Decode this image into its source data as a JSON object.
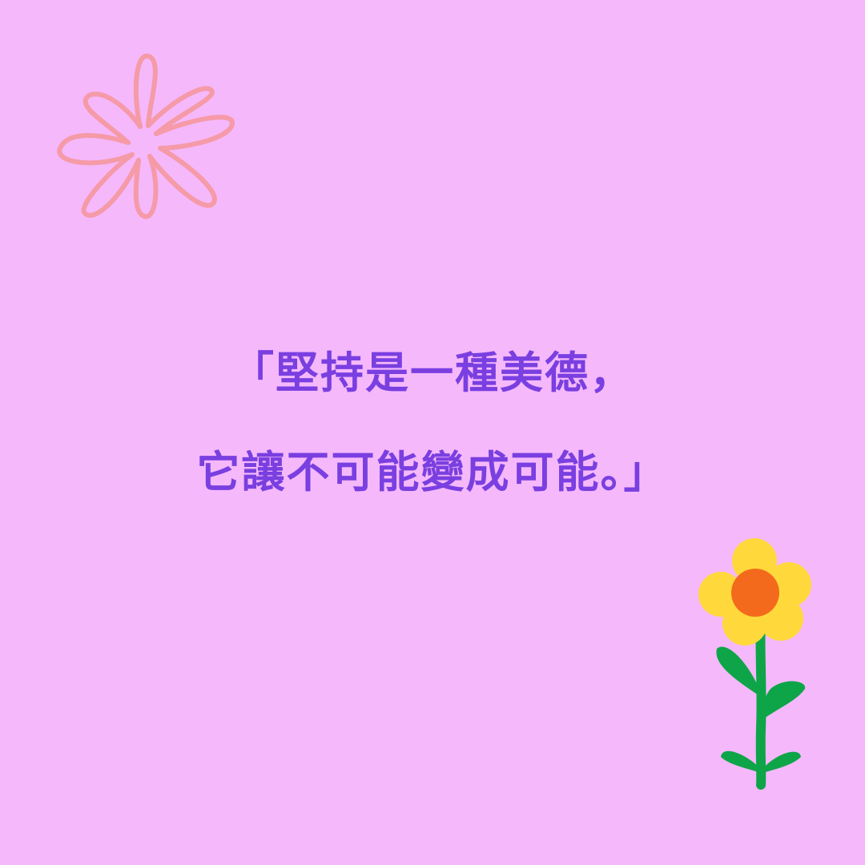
{
  "quote": {
    "line1": "「堅持是一種美德，",
    "line2": "它讓不可能變成可能。」"
  },
  "colors": {
    "background": "#f5b8fb",
    "text": "#7a3fe0",
    "outline_flower": "#f59aa7",
    "petal": "#ffd93b",
    "center": "#f46a1c",
    "stem": "#0ea548"
  },
  "decorations": {
    "top_left": "outline-flower-icon",
    "bottom_right": "sunflower-icon"
  }
}
